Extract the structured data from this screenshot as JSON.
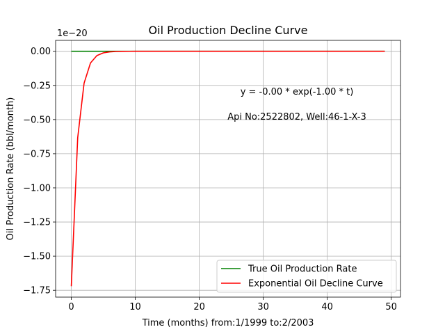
{
  "chart_data": {
    "type": "line",
    "title": "Oil Production Decline Curve",
    "xlabel": "Time (months) from:1/1999 to:2/2003",
    "ylabel": "Oil Production Rate (bbl/month)",
    "y_offset_text": "1e−20",
    "xlim": [
      -2.45,
      51.45
    ],
    "ylim": [
      -1.8,
      0.08
    ],
    "x_ticks": [
      0,
      10,
      20,
      30,
      40,
      50
    ],
    "x_tick_labels": [
      "0",
      "10",
      "20",
      "30",
      "40",
      "50"
    ],
    "y_ticks": [
      0.0,
      -0.25,
      -0.5,
      -0.75,
      -1.0,
      -1.25,
      -1.5,
      -1.75
    ],
    "y_tick_labels": [
      "0.00",
      "−0.25",
      "−0.50",
      "−0.75",
      "−1.00",
      "−1.25",
      "−1.50",
      "−1.75"
    ],
    "grid": true,
    "legend_position": "bottom-right",
    "annotations": [
      "y = -0.00 * exp(-1.00 * t)",
      "Api No:2522802, Well:46-1-X-3"
    ],
    "series": [
      {
        "name": "True Oil Production Rate",
        "color": "#008000",
        "x": [
          0,
          49
        ],
        "y": [
          0,
          0
        ]
      },
      {
        "name": "Exponential Oil Decline Curve",
        "color": "#ff0000",
        "x": [
          0,
          1,
          2,
          3,
          4,
          5,
          6,
          7,
          8,
          9,
          10,
          11,
          12,
          13,
          14,
          15,
          16,
          17,
          18,
          19,
          20,
          21,
          22,
          23,
          24,
          25,
          26,
          27,
          28,
          29,
          30,
          31,
          32,
          33,
          34,
          35,
          36,
          37,
          38,
          39,
          40,
          41,
          42,
          43,
          44,
          45,
          46,
          47,
          48,
          49
        ],
        "y": [
          -1.72,
          -0.633,
          -0.233,
          -0.0856,
          -0.0315,
          -0.0116,
          -0.00426,
          -0.00157,
          -0.000577,
          -0.000212,
          -7.8e-05,
          -2.87e-05,
          -1.06e-05,
          0,
          0,
          0,
          0,
          0,
          0,
          0,
          0,
          0,
          0,
          0,
          0,
          0,
          0,
          0,
          0,
          0,
          0,
          0,
          0,
          0,
          0,
          0,
          0,
          0,
          0,
          0,
          0,
          0,
          0,
          0,
          0,
          0,
          0,
          0,
          0,
          0
        ]
      }
    ]
  }
}
